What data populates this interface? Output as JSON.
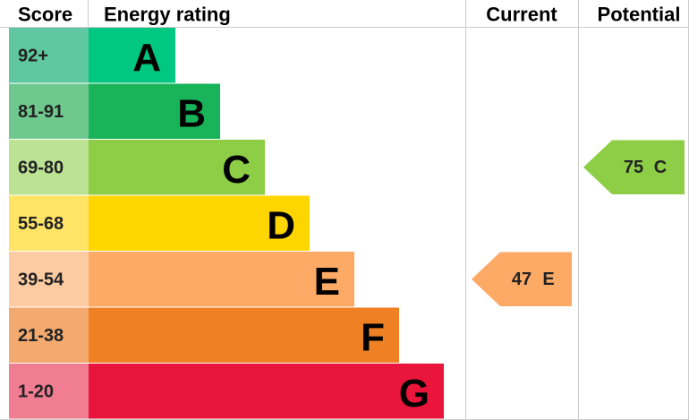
{
  "chart_data": {
    "type": "epc",
    "headers": [
      "Score",
      "Energy rating",
      "Current",
      "Potential"
    ],
    "bands": [
      {
        "score": "92+",
        "letter": "A",
        "color": "#00c781",
        "score_color": "#5fc8a2"
      },
      {
        "score": "81-91",
        "letter": "B",
        "color": "#19b459",
        "score_color": "#6fc98e"
      },
      {
        "score": "69-80",
        "letter": "C",
        "color": "#8dce46",
        "score_color": "#bce394"
      },
      {
        "score": "55-68",
        "letter": "D",
        "color": "#ffd500",
        "score_color": "#ffe466"
      },
      {
        "score": "39-54",
        "letter": "E",
        "color": "#fcaa65",
        "score_color": "#fdcba2"
      },
      {
        "score": "21-38",
        "letter": "F",
        "color": "#ef8023",
        "score_color": "#f4a96f"
      },
      {
        "score": "1-20",
        "letter": "G",
        "color": "#e9153b",
        "score_color": "#f07d92"
      }
    ],
    "current": {
      "value": 47,
      "band": "E"
    },
    "potential": {
      "value": 75,
      "band": "C"
    }
  }
}
